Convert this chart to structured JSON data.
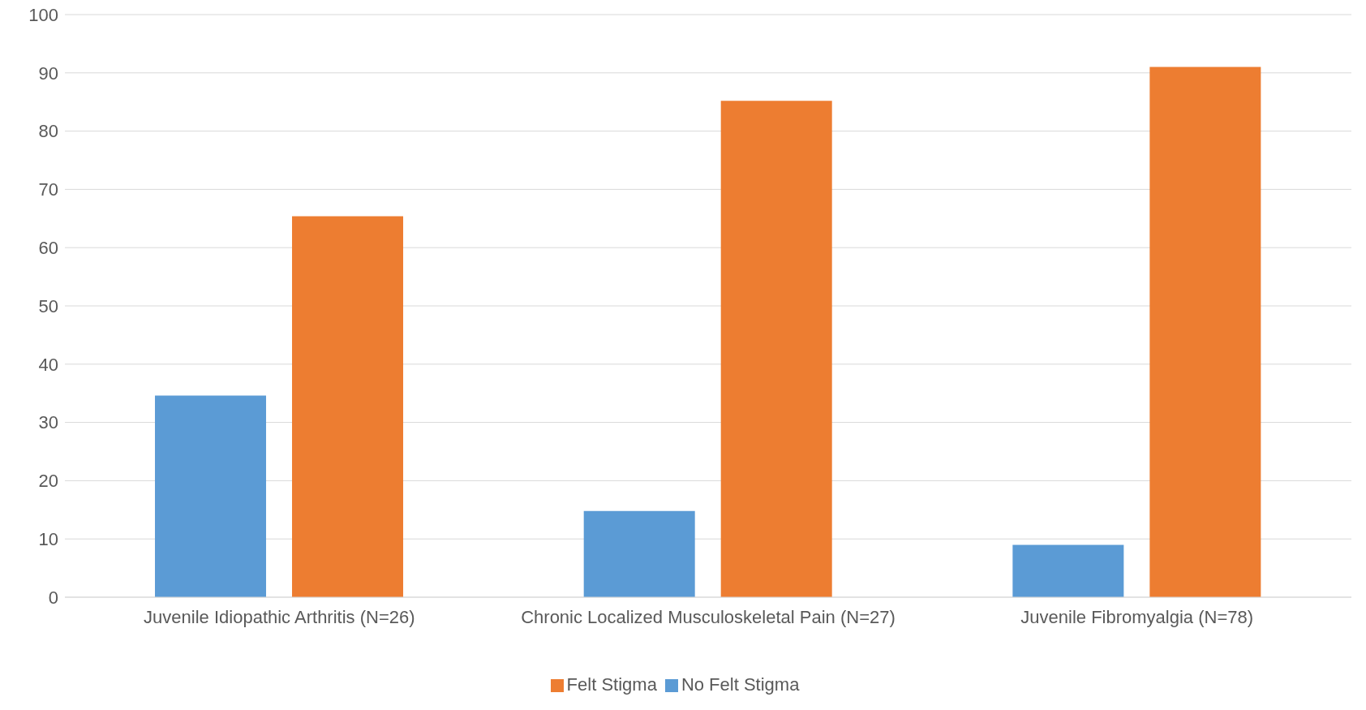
{
  "chart_data": {
    "type": "bar",
    "categories": [
      "Juvenile Idiopathic Arthritis (N=26)",
      "Chronic Localized Musculoskeletal Pain (N=27)",
      "Juvenile Fibromyalgia (N=78)"
    ],
    "series": [
      {
        "name": "No Felt Stigma",
        "color": "#5b9bd5",
        "values": [
          34.6,
          14.8,
          9
        ]
      },
      {
        "name": "Felt Stigma",
        "color": "#ed7d31",
        "values": [
          65.4,
          85.2,
          91
        ]
      }
    ],
    "ylim": [
      0,
      100
    ],
    "yticks": [
      0,
      10,
      20,
      30,
      40,
      50,
      60,
      70,
      80,
      90,
      100
    ],
    "grid": "y",
    "legend": "bottom"
  }
}
